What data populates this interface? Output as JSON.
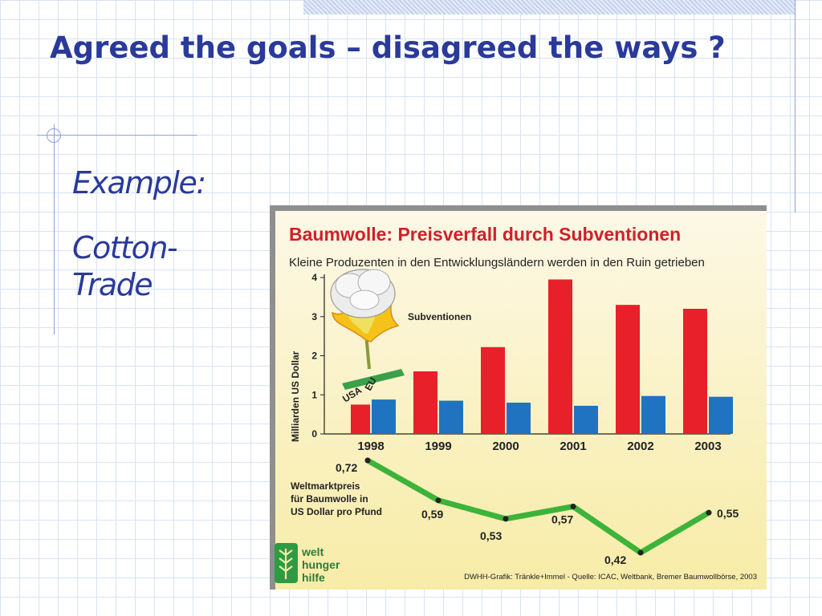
{
  "slide": {
    "title": "Agreed the goals – disagreed the ways ?",
    "bullets": [
      "Example:",
      "Cotton-Trade"
    ]
  },
  "chart_data": [
    {
      "type": "bar",
      "title": "Baumwolle: Preisverfall durch Subventionen",
      "subtitle": "Kleine Produzenten in den Entwicklungsländern werden in den Ruin getrieben",
      "xlabel": "",
      "ylabel": "Milliarden US Dollar",
      "ylim": [
        0,
        4
      ],
      "yticks": [
        0,
        1,
        2,
        3,
        4
      ],
      "categories": [
        "1998",
        "1999",
        "2000",
        "2001",
        "2002",
        "2003"
      ],
      "series": [
        {
          "name": "USA",
          "color": "#e8202a",
          "values": [
            0.75,
            1.6,
            2.22,
            3.95,
            3.3,
            3.2
          ]
        },
        {
          "name": "EU",
          "color": "#1f73c0",
          "values": [
            0.88,
            0.85,
            0.8,
            0.72,
            0.97,
            0.95
          ]
        }
      ],
      "legend": "Subventionen",
      "grid": false
    },
    {
      "type": "line",
      "label": "Weltmarktpreis\nfür Baumwolle in\nUS Dollar pro Pfund",
      "x": [
        "1998",
        "1999",
        "2000",
        "2001",
        "2002",
        "2003"
      ],
      "values": [
        0.72,
        0.59,
        0.53,
        0.57,
        0.42,
        0.55
      ],
      "value_labels": [
        "0,72",
        "0,59",
        "0,53",
        "0,57",
        "0,42",
        "0,55"
      ],
      "color": "#3db33a"
    }
  ],
  "logo": {
    "lines": [
      "welt",
      "hunger",
      "hilfe"
    ]
  },
  "source": "DWHH-Grafik: Tränkle+Immel - Quelle: ICAC, Weltbank, Bremer Baumwollbörse, 2003"
}
